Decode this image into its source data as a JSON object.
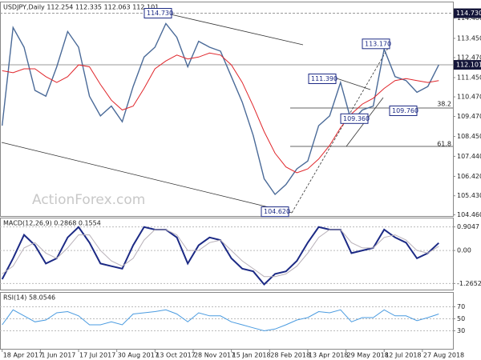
{
  "chart_data": [
    {
      "type": "line",
      "title": "USDJPY,Daily  112.254 112.335 112.063 112.101",
      "watermark": "ActionForex.com",
      "xlim": [
        -0.2,
        41.3
      ],
      "ylim": [
        104.4,
        115.2
      ],
      "yticks": [
        {
          "value": 114.48,
          "label": "114.480"
        },
        {
          "value": 113.45,
          "label": "113.450"
        },
        {
          "value": 112.47,
          "label": "112.470"
        },
        {
          "value": 111.45,
          "label": "111.450"
        },
        {
          "value": 110.47,
          "label": "110.470"
        },
        {
          "value": 109.47,
          "label": "109.470"
        },
        {
          "value": 108.45,
          "label": "108.450"
        },
        {
          "value": 107.44,
          "label": "107.440"
        },
        {
          "value": 106.42,
          "label": "106.420"
        },
        {
          "value": 105.43,
          "label": "105.430"
        },
        {
          "value": 104.46,
          "label": "104.460"
        }
      ],
      "series": [
        {
          "color": "#4a6a98",
          "values": [
            109.0,
            114.0,
            113.0,
            110.8,
            110.5,
            112.0,
            113.8,
            113.0,
            110.5,
            109.5,
            110.0,
            109.2,
            111.0,
            112.5,
            113.0,
            114.2,
            113.5,
            112.0,
            113.3,
            113.0,
            112.8,
            111.5,
            110.2,
            108.5,
            106.3,
            105.5,
            106.0,
            106.8,
            107.2,
            109.0,
            109.5,
            111.2,
            109.2,
            109.8,
            110.0,
            112.9,
            111.5,
            111.3,
            110.7,
            111.0,
            112.1
          ]
        },
        {
          "color": "#e0262b",
          "values": [
            111.8,
            111.7,
            111.9,
            111.9,
            111.5,
            111.2,
            111.5,
            112.1,
            112.0,
            111.1,
            110.3,
            109.8,
            110.0,
            110.9,
            111.9,
            112.3,
            112.6,
            112.4,
            112.5,
            112.7,
            112.6,
            112.1,
            111.2,
            110.0,
            108.7,
            107.6,
            106.9,
            106.6,
            106.8,
            107.3,
            108.0,
            108.9,
            109.6,
            110.1,
            110.4,
            110.9,
            111.3,
            111.4,
            111.3,
            111.2,
            111.3
          ]
        }
      ],
      "annotations": [
        {
          "value": 114.73,
          "label": "114.730"
        },
        {
          "value": 113.17,
          "label": "113.170"
        },
        {
          "value": 111.39,
          "label": "111.390"
        },
        {
          "value": 109.36,
          "label": "109.360"
        },
        {
          "value": 109.76,
          "label": "109.760"
        },
        {
          "value": 104.62,
          "label": "104.620"
        }
      ],
      "fib_labels": [
        "38.2",
        "61.8"
      ],
      "markers": [
        {
          "value": 114.73,
          "label": "114.730"
        },
        {
          "value": 112.101,
          "label": "112.101"
        }
      ]
    },
    {
      "type": "line",
      "title": "MACD(12,26,9) 0.2868 0.1554",
      "xlim": [
        -0.2,
        41.3
      ],
      "ylim": [
        -1.5,
        1.2
      ],
      "yticks": [
        0.9047,
        {
          "value": 0,
          "label": "0.00"
        },
        -1.2652
      ],
      "series": [
        {
          "color": "#1c2a85",
          "values": [
            -1.1,
            -0.3,
            0.6,
            0.2,
            -0.5,
            -0.3,
            0.5,
            0.9,
            0.3,
            -0.5,
            -0.6,
            -0.7,
            0.2,
            0.9,
            0.8,
            0.8,
            0.5,
            -0.5,
            0.2,
            0.5,
            0.4,
            -0.3,
            -0.7,
            -0.8,
            -1.3,
            -0.9,
            -0.8,
            -0.4,
            0.3,
            0.9,
            0.8,
            0.8,
            -0.1,
            0.0,
            0.1,
            0.8,
            0.5,
            0.3,
            -0.3,
            -0.1,
            0.29
          ]
        },
        {
          "color": "#b8b0b8",
          "values": [
            -0.9,
            -0.6,
            0.1,
            0.3,
            -0.1,
            -0.3,
            0.1,
            0.6,
            0.6,
            0.0,
            -0.4,
            -0.6,
            -0.3,
            0.4,
            0.8,
            0.8,
            0.6,
            0.0,
            0.0,
            0.3,
            0.4,
            0.0,
            -0.4,
            -0.7,
            -1.0,
            -1.0,
            -0.9,
            -0.6,
            -0.1,
            0.5,
            0.8,
            0.8,
            0.3,
            0.1,
            0.1,
            0.5,
            0.6,
            0.4,
            0.0,
            -0.1,
            0.16
          ]
        }
      ]
    },
    {
      "type": "line",
      "title": "RSI(14) 58.0546",
      "xlim": [
        -0.2,
        41.3
      ],
      "ylim": [
        0,
        92
      ],
      "yticks": [
        70,
        50,
        30
      ],
      "xticks": [
        {
          "value": 0,
          "label": "18 Apr 2017"
        },
        {
          "value": 3.5,
          "label": "1 Jun 2017"
        },
        {
          "value": 7,
          "label": "17 Jul 2017"
        },
        {
          "value": 10.5,
          "label": "30 Aug 2017"
        },
        {
          "value": 14,
          "label": "13 Oct 2017"
        },
        {
          "value": 17.5,
          "label": "28 Nov 2017"
        },
        {
          "value": 21,
          "label": "15 Jan 2018"
        },
        {
          "value": 24.5,
          "label": "28 Feb 2018"
        },
        {
          "value": 28,
          "label": "13 Apr 2018"
        },
        {
          "value": 31.5,
          "label": "29 May 2018"
        },
        {
          "value": 35,
          "label": "12 Jul 2018"
        },
        {
          "value": 38.5,
          "label": "27 Aug 2018"
        }
      ],
      "series": [
        {
          "color": "#4a9be0",
          "values": [
            40,
            65,
            55,
            45,
            48,
            60,
            62,
            55,
            40,
            40,
            45,
            40,
            58,
            60,
            62,
            65,
            58,
            45,
            60,
            55,
            55,
            45,
            40,
            35,
            30,
            33,
            40,
            48,
            52,
            62,
            60,
            65,
            45,
            52,
            52,
            65,
            55,
            55,
            47,
            52,
            58
          ]
        }
      ]
    }
  ]
}
